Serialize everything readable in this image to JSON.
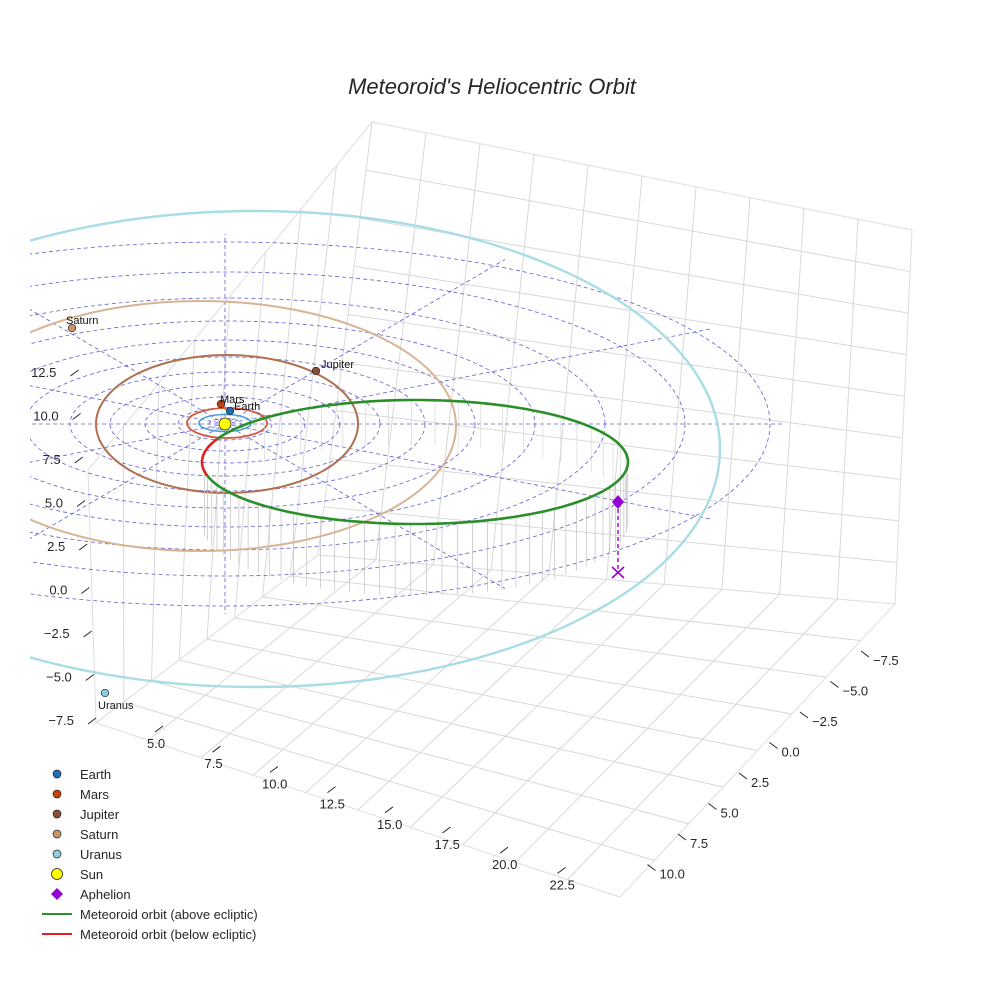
{
  "chart_data": {
    "type": "3d-line",
    "title": "Meteoroid's Heliocentric Orbit",
    "x_ticks": [
      "5.0",
      "7.5",
      "10.0",
      "12.5",
      "15.0",
      "17.5",
      "20.0",
      "22.5"
    ],
    "y_ticks": [
      "−7.5",
      "−5.0",
      "−2.5",
      "0.0",
      "2.5",
      "5.0",
      "7.5",
      "10.0"
    ],
    "z_ticks": [
      "−7.5",
      "−5.0",
      "−2.5",
      "0.0",
      "2.5",
      "5.0",
      "7.5",
      "10.0",
      "12.5"
    ],
    "bodies": [
      {
        "name": "Earth",
        "color": "#1f6fb4"
      },
      {
        "name": "Mars",
        "color": "#c1440e"
      },
      {
        "name": "Jupiter",
        "color": "#8b4f36"
      },
      {
        "name": "Saturn",
        "color": "#c8956a"
      },
      {
        "name": "Uranus",
        "color": "#8ecae0"
      }
    ],
    "orbit_colors": {
      "earth": "#4a9fd0",
      "mars": "#d35a40",
      "jupiter": "#b07050",
      "saturn": "#d8b494",
      "uranus": "#a8dde6",
      "grid": "#4444cc",
      "above": "#2a8f2a",
      "below": "#e02020",
      "aphelion": "#9400d3"
    },
    "legend": [
      {
        "label": "Earth",
        "kind": "dot",
        "color": "#1f6fb4"
      },
      {
        "label": "Mars",
        "kind": "dot",
        "color": "#c1440e"
      },
      {
        "label": "Jupiter",
        "kind": "dot",
        "color": "#8b4f36"
      },
      {
        "label": "Saturn",
        "kind": "dot",
        "color": "#c8956a"
      },
      {
        "label": "Uranus",
        "kind": "dot",
        "color": "#8ecae0"
      },
      {
        "label": "Sun",
        "kind": "sun",
        "color": "#ffff00"
      },
      {
        "label": "Aphelion",
        "kind": "diamond",
        "color": "#9400d3"
      },
      {
        "label": "Meteoroid orbit (above ecliptic)",
        "kind": "line",
        "color": "#2a8f2a"
      },
      {
        "label": "Meteoroid orbit (below ecliptic)",
        "kind": "line",
        "color": "#e02020"
      }
    ]
  }
}
